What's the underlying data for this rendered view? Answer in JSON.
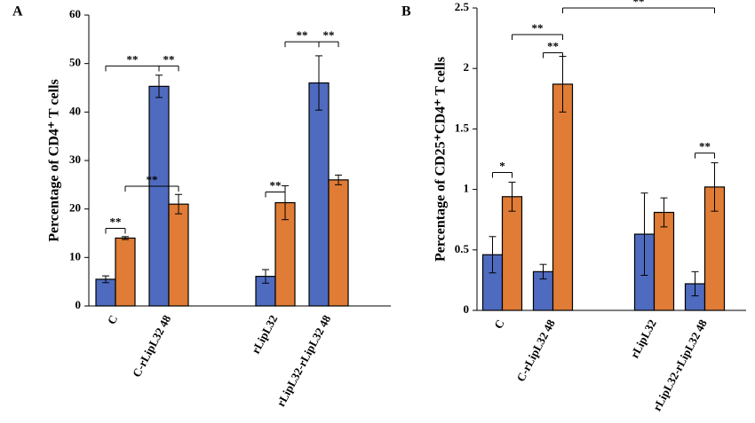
{
  "chart_data": [
    {
      "type": "bar",
      "title": "A",
      "y_label": "Percentage of CD4⁺ T cells",
      "categories": [
        "C",
        "C-rLipL32 48",
        null,
        "rLipL32",
        "rLipL32-rLipL32 48"
      ],
      "series": [
        {
          "color": "#4f6bbf",
          "values": [
            5.5,
            45.3,
            null,
            6.1,
            46
          ],
          "errors": [
            0.7,
            2.3,
            null,
            1.4,
            5.6
          ]
        },
        {
          "color": "#e07c35",
          "values": [
            14,
            21,
            null,
            21.3,
            26
          ],
          "errors": [
            0.3,
            2,
            null,
            3.5,
            1
          ]
        }
      ],
      "ylim": [
        0,
        60
      ],
      "yticks": [
        0,
        10,
        20,
        30,
        40,
        50,
        60
      ],
      "annotations": [
        {
          "text": "**",
          "from": [
            0,
            0
          ],
          "to": [
            0,
            1
          ],
          "y": 16
        },
        {
          "text": "**",
          "from": [
            0,
            0
          ],
          "to": [
            1,
            0
          ],
          "y": 49.5
        },
        {
          "text": "**",
          "from": [
            1,
            0
          ],
          "to": [
            1,
            1
          ],
          "y": 49.5
        },
        {
          "text": "**",
          "from": [
            0,
            1
          ],
          "to": [
            1,
            1
          ],
          "y": 24.7
        },
        {
          "text": "**",
          "from": [
            3,
            0
          ],
          "to": [
            3,
            1
          ],
          "y": 23.5
        },
        {
          "text": "**",
          "from": [
            3,
            1
          ],
          "to": [
            4,
            0
          ],
          "y": 54.5
        },
        {
          "text": "**",
          "from": [
            4,
            0
          ],
          "to": [
            4,
            1
          ],
          "y": 54.5
        }
      ]
    },
    {
      "type": "bar",
      "title": "B",
      "y_label": "Percentage of CD25⁺CD4⁺ T cells",
      "categories": [
        "C",
        "C-rLipL32 48",
        null,
        "rLipL32",
        "rLipL32-rLipL32 48"
      ],
      "series": [
        {
          "color": "#4f6bbf",
          "values": [
            0.46,
            0.32,
            null,
            0.63,
            0.22
          ],
          "errors": [
            0.15,
            0.06,
            null,
            0.34,
            0.1
          ]
        },
        {
          "color": "#e07c35",
          "values": [
            0.94,
            1.87,
            null,
            0.81,
            1.02
          ],
          "errors": [
            0.12,
            0.23,
            null,
            0.12,
            0.2
          ]
        }
      ],
      "ylim": [
        0,
        2.5
      ],
      "yticks": [
        0,
        0.5,
        1,
        1.5,
        2,
        2.5
      ],
      "annotations": [
        {
          "text": "*",
          "from": [
            0,
            0
          ],
          "to": [
            0,
            1
          ],
          "y": 1.14
        },
        {
          "text": "**",
          "from": [
            0,
            1
          ],
          "to": [
            1,
            1
          ],
          "y": 2.28
        },
        {
          "text": "**",
          "from": [
            1,
            0
          ],
          "to": [
            1,
            1
          ],
          "y": 2.13
        },
        {
          "text": "**",
          "from": [
            1,
            1
          ],
          "to": [
            4,
            1
          ],
          "y": 2.5
        },
        {
          "text": "**",
          "from": [
            4,
            0
          ],
          "to": [
            4,
            1
          ],
          "y": 1.3
        }
      ]
    }
  ]
}
